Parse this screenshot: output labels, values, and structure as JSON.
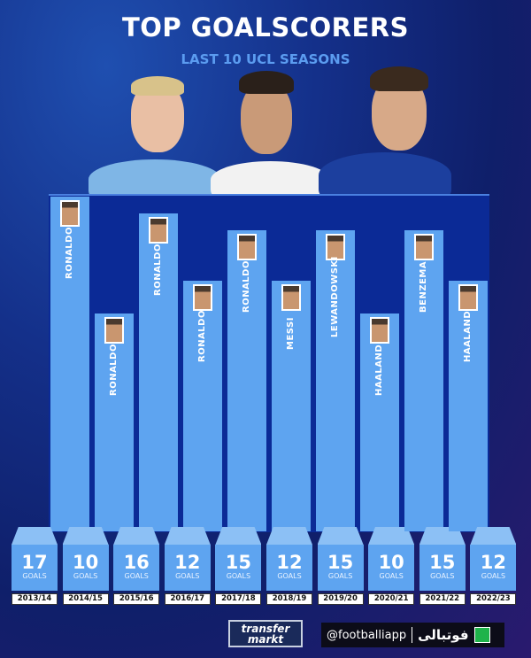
{
  "header": {
    "title": "TOP GOALSCORERS",
    "subtitle": "LAST 10 UCL SEASONS"
  },
  "colors": {
    "bar": "#5ea4f0",
    "panel": "#0b2a96",
    "title": "#ffffff",
    "subtitle": "#5b9cf0"
  },
  "chart_data": {
    "type": "bar",
    "title": "TOP GOALSCORERS",
    "subtitle": "LAST 10 UCL SEASONS",
    "categories": [
      "2013/14",
      "2014/15",
      "2015/16",
      "2016/17",
      "2017/18",
      "2018/19",
      "2019/20",
      "2020/21",
      "2021/22",
      "2022/23"
    ],
    "players": [
      "RONALDO",
      "RONALDO",
      "RONALDO",
      "RONALDO",
      "RONALDO",
      "MESSI",
      "LEWANDOWSKI",
      "HAALAND",
      "BENZEMA",
      "HAALAND"
    ],
    "values": [
      17,
      10,
      16,
      12,
      15,
      12,
      15,
      10,
      15,
      12
    ],
    "unit_label": "GOALS",
    "grid": false
  },
  "footer": {
    "transfermarkt_logo": "transfer markt",
    "handle": "@footballiapp",
    "brand": "فوتبالی"
  }
}
